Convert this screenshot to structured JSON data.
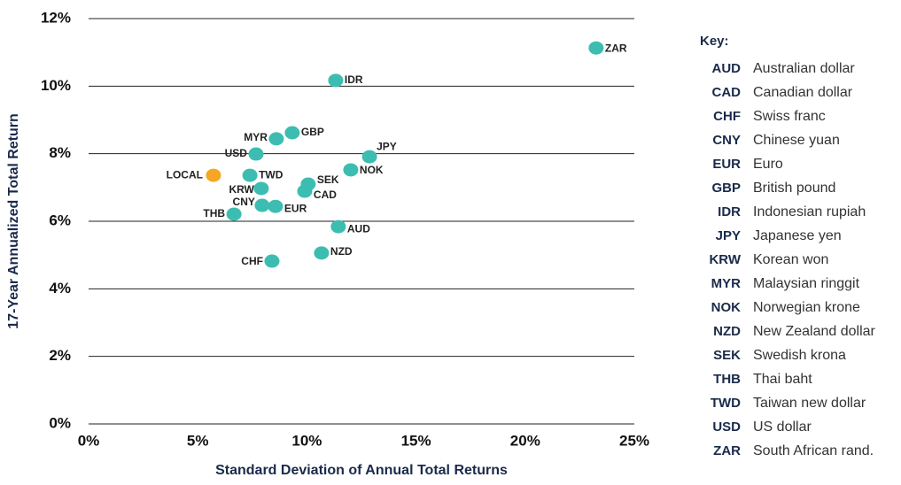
{
  "chart_data": {
    "type": "scatter",
    "x_label": "Standard Deviation of Annual Total Returns",
    "y_label": "17-Year Annualized Total Return",
    "xlim": [
      0,
      25
    ],
    "ylim": [
      0,
      12
    ],
    "xticks": [
      {
        "value": 0,
        "label": "0%"
      },
      {
        "value": 5,
        "label": "5%"
      },
      {
        "value": 10,
        "label": "10%"
      },
      {
        "value": 15,
        "label": "15%"
      },
      {
        "value": 20,
        "label": "20%"
      },
      {
        "value": 25,
        "label": "25%"
      }
    ],
    "yticks": [
      {
        "value": 0,
        "label": "0%"
      },
      {
        "value": 2,
        "label": "2%"
      },
      {
        "value": 4,
        "label": "4%"
      },
      {
        "value": 6,
        "label": "6%"
      },
      {
        "value": 8,
        "label": "8%"
      },
      {
        "value": 10,
        "label": "10%"
      },
      {
        "value": 12,
        "label": "12%"
      }
    ],
    "grid": true,
    "points": [
      {
        "label": "ZAR",
        "x": 23.25,
        "y": 11.13,
        "color": "#3dbdb1"
      },
      {
        "label": "IDR",
        "x": 11.32,
        "y": 10.17,
        "color": "#3dbdb1"
      },
      {
        "label": "GBP",
        "x": 9.33,
        "y": 8.62,
        "color": "#3dbdb1"
      },
      {
        "label": "MYR",
        "x": 8.6,
        "y": 8.44,
        "color": "#3dbdb1"
      },
      {
        "label": "USD",
        "x": 7.67,
        "y": 7.99,
        "color": "#3dbdb1"
      },
      {
        "label": "JPY",
        "x": 12.87,
        "y": 7.91,
        "color": "#3dbdb1"
      },
      {
        "label": "NOK",
        "x": 12.01,
        "y": 7.52,
        "color": "#3dbdb1"
      },
      {
        "label": "LOCAL",
        "x": 5.72,
        "y": 7.36,
        "color": "#f5a623"
      },
      {
        "label": "TWD",
        "x": 7.39,
        "y": 7.36,
        "color": "#3dbdb1"
      },
      {
        "label": "SEK",
        "x": 10.06,
        "y": 7.1,
        "color": "#3dbdb1"
      },
      {
        "label": "KRW",
        "x": 7.91,
        "y": 6.97,
        "color": "#3dbdb1"
      },
      {
        "label": "CAD",
        "x": 9.9,
        "y": 6.89,
        "color": "#3dbdb1"
      },
      {
        "label": "CNY",
        "x": 7.95,
        "y": 6.47,
        "color": "#3dbdb1"
      },
      {
        "label": "EUR",
        "x": 8.56,
        "y": 6.44,
        "color": "#3dbdb1"
      },
      {
        "label": "THB",
        "x": 6.66,
        "y": 6.21,
        "color": "#3dbdb1"
      },
      {
        "label": "AUD",
        "x": 11.44,
        "y": 5.84,
        "color": "#3dbdb1"
      },
      {
        "label": "NZD",
        "x": 10.67,
        "y": 5.06,
        "color": "#3dbdb1"
      },
      {
        "label": "CHF",
        "x": 8.4,
        "y": 4.82,
        "color": "#3dbdb1"
      }
    ],
    "key_title": "Key:",
    "key": [
      {
        "code": "AUD",
        "name": "Australian dollar"
      },
      {
        "code": "CAD",
        "name": "Canadian dollar"
      },
      {
        "code": "CHF",
        "name": "Swiss franc"
      },
      {
        "code": "CNY",
        "name": "Chinese yuan"
      },
      {
        "code": "EUR",
        "name": "Euro"
      },
      {
        "code": "GBP",
        "name": "British pound"
      },
      {
        "code": "IDR",
        "name": "Indonesian rupiah"
      },
      {
        "code": "JPY",
        "name": "Japanese yen"
      },
      {
        "code": "KRW",
        "name": "Korean won"
      },
      {
        "code": "MYR",
        "name": "Malaysian ringgit"
      },
      {
        "code": "NOK",
        "name": "Norwegian krone"
      },
      {
        "code": "NZD",
        "name": "New Zealand dollar"
      },
      {
        "code": "SEK",
        "name": "Swedish krona"
      },
      {
        "code": "THB",
        "name": "Thai baht"
      },
      {
        "code": "TWD",
        "name": "Taiwan new dollar"
      },
      {
        "code": "USD",
        "name": "US dollar"
      },
      {
        "code": "ZAR",
        "name": "South African rand."
      }
    ]
  }
}
